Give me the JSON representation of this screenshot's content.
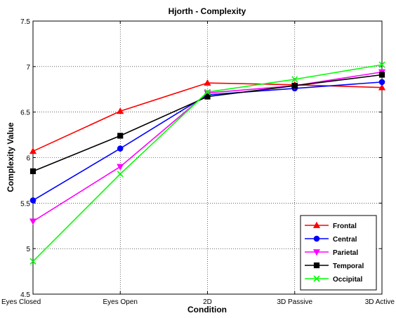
{
  "chart_data": {
    "type": "line",
    "title": "Hjorth - Complexity",
    "xlabel": "Condition",
    "ylabel": "Complexity Value",
    "categories": [
      "Eyes Closed",
      "Eyes Open",
      "2D",
      "3D Passive",
      "3D Active"
    ],
    "ylim": [
      4.5,
      7.5
    ],
    "yticks": [
      "4.5",
      "5",
      "5.5",
      "6",
      "6.5",
      "7",
      "7.5"
    ],
    "grid": true,
    "legend_position": "bottom-right",
    "series": [
      {
        "name": "Frontal",
        "color": "#ff0000",
        "marker": "triangle-up",
        "values": [
          6.07,
          6.51,
          6.82,
          6.8,
          6.77
        ]
      },
      {
        "name": "Central",
        "color": "#0000ff",
        "marker": "circle",
        "values": [
          5.53,
          6.1,
          6.69,
          6.76,
          6.83
        ]
      },
      {
        "name": "Parietal",
        "color": "#ff00ff",
        "marker": "triangle-down",
        "values": [
          5.3,
          5.9,
          6.71,
          6.79,
          6.94
        ]
      },
      {
        "name": "Temporal",
        "color": "#000000",
        "marker": "square",
        "values": [
          5.85,
          6.24,
          6.67,
          6.79,
          6.91
        ]
      },
      {
        "name": "Occipital",
        "color": "#00ff00",
        "marker": "x",
        "values": [
          4.86,
          5.82,
          6.72,
          6.86,
          7.02
        ]
      }
    ]
  }
}
